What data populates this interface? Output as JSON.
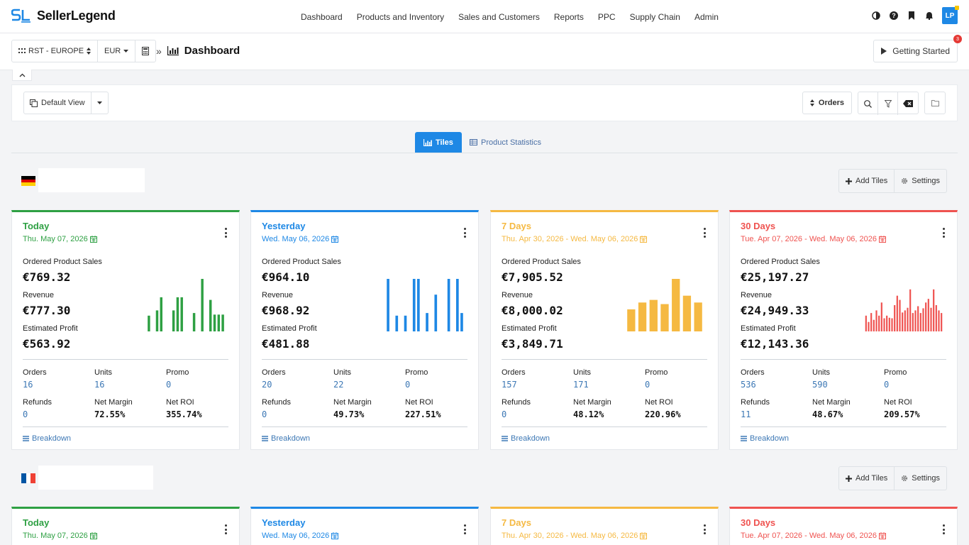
{
  "app": {
    "name": "SellerLegend"
  },
  "nav": {
    "items": [
      "Dashboard",
      "Products and Inventory",
      "Sales and Customers",
      "Reports",
      "PPC",
      "Supply Chain",
      "Admin"
    ],
    "avatar": "LP",
    "icons": [
      "contrast-icon",
      "help-icon",
      "bookmark-icon",
      "bell-icon"
    ]
  },
  "subheader": {
    "account": "RST - EUROPE",
    "currency": "EUR",
    "breadcrumb_sep": "»",
    "page_title": "Dashboard",
    "getting_started": "Getting Started",
    "getting_started_badge": "3"
  },
  "toolbar": {
    "view": "Default View",
    "sort": "Orders"
  },
  "tabs": {
    "tiles": "Tiles",
    "product_statistics": "Product Statistics"
  },
  "section_actions": {
    "add_tiles": "Add Tiles",
    "settings": "Settings"
  },
  "colors": {
    "today": "#2ea043",
    "yesterday": "#1e88e5",
    "week": "#f5b942",
    "month": "#ef5350"
  },
  "sections": [
    {
      "flag": "germany",
      "cards": [
        {
          "period": "Today",
          "date": "Thu. May 07, 2026",
          "color": "#2ea043",
          "ordered_label": "Ordered Product Sales",
          "ordered": "€769.32",
          "revenue_label": "Revenue",
          "revenue": "€777.30",
          "profit_label": "Estimated Profit",
          "profit": "€563.92",
          "orders_label": "Orders",
          "orders": "16",
          "units_label": "Units",
          "units": "16",
          "promo_label": "Promo",
          "promo": "0",
          "refunds_label": "Refunds",
          "refunds": "0",
          "margin_label": "Net Margin",
          "margin": "72.55%",
          "roi_label": "Net ROI",
          "roi": "355.74%",
          "breakdown": "Breakdown",
          "spark": [
            0.3,
            0,
            0.4,
            0.65,
            0,
            0,
            0.4,
            0.65,
            0.65,
            0,
            0,
            0.35,
            0,
            1,
            0,
            0.6,
            0.32,
            0.32,
            0.32
          ]
        },
        {
          "period": "Yesterday",
          "date": "Wed. May 06, 2026",
          "color": "#1e88e5",
          "ordered_label": "Ordered Product Sales",
          "ordered": "€964.10",
          "revenue_label": "Revenue",
          "revenue": "€968.92",
          "profit_label": "Estimated Profit",
          "profit": "€481.88",
          "orders_label": "Orders",
          "orders": "20",
          "units_label": "Units",
          "units": "22",
          "promo_label": "Promo",
          "promo": "0",
          "refunds_label": "Refunds",
          "refunds": "0",
          "margin_label": "Net Margin",
          "margin": "49.73%",
          "roi_label": "Net ROI",
          "roi": "227.51%",
          "breakdown": "Breakdown",
          "spark": [
            1,
            0,
            0.3,
            0,
            0.3,
            0,
            1,
            1,
            0,
            0.35,
            0,
            0.7,
            0,
            0,
            1,
            0,
            1,
            0.35
          ]
        },
        {
          "period": "7 Days",
          "date": "Thu. Apr 30, 2026 - Wed. May 06, 2026",
          "color": "#f5b942",
          "ordered_label": "Ordered Product Sales",
          "ordered": "€7,905.52",
          "revenue_label": "Revenue",
          "revenue": "€8,000.02",
          "profit_label": "Estimated Profit",
          "profit": "€3,849.71",
          "orders_label": "Orders",
          "orders": "157",
          "units_label": "Units",
          "units": "171",
          "promo_label": "Promo",
          "promo": "0",
          "refunds_label": "Refunds",
          "refunds": "0",
          "margin_label": "Net Margin",
          "margin": "48.12%",
          "roi_label": "Net ROI",
          "roi": "220.96%",
          "breakdown": "Breakdown",
          "spark": [
            0.42,
            0.55,
            0.6,
            0.52,
            1,
            0.68,
            0.55
          ]
        },
        {
          "period": "30 Days",
          "date": "Tue. Apr 07, 2026 - Wed. May 06, 2026",
          "color": "#ef5350",
          "ordered_label": "Ordered Product Sales",
          "ordered": "€25,197.27",
          "revenue_label": "Revenue",
          "revenue": "€24,949.33",
          "profit_label": "Estimated Profit",
          "profit": "€12,143.36",
          "orders_label": "Orders",
          "orders": "536",
          "units_label": "Units",
          "units": "590",
          "promo_label": "Promo",
          "promo": "0",
          "refunds_label": "Refunds",
          "refunds": "11",
          "margin_label": "Net Margin",
          "margin": "48.67%",
          "roi_label": "Net ROI",
          "roi": "209.57%",
          "breakdown": "Breakdown",
          "spark": [
            0.3,
            0.18,
            0.35,
            0.22,
            0.4,
            0.3,
            0.55,
            0.25,
            0.3,
            0.26,
            0.25,
            0.5,
            0.68,
            0.6,
            0.36,
            0.4,
            0.45,
            0.8,
            0.35,
            0.4,
            0.48,
            0.35,
            0.44,
            0.55,
            0.62,
            0.45,
            0.8,
            0.5,
            0.4,
            0.35
          ]
        }
      ]
    },
    {
      "flag": "france",
      "cards": [
        {
          "period": "Today",
          "date": "Thu. May 07, 2026",
          "color": "#2ea043"
        },
        {
          "period": "Yesterday",
          "date": "Wed. May 06, 2026",
          "color": "#1e88e5"
        },
        {
          "period": "7 Days",
          "date": "Thu. Apr 30, 2026 - Wed. May 06, 2026",
          "color": "#f5b942"
        },
        {
          "period": "30 Days",
          "date": "Tue. Apr 07, 2026 - Wed. May 06, 2026",
          "color": "#ef5350"
        }
      ]
    }
  ]
}
